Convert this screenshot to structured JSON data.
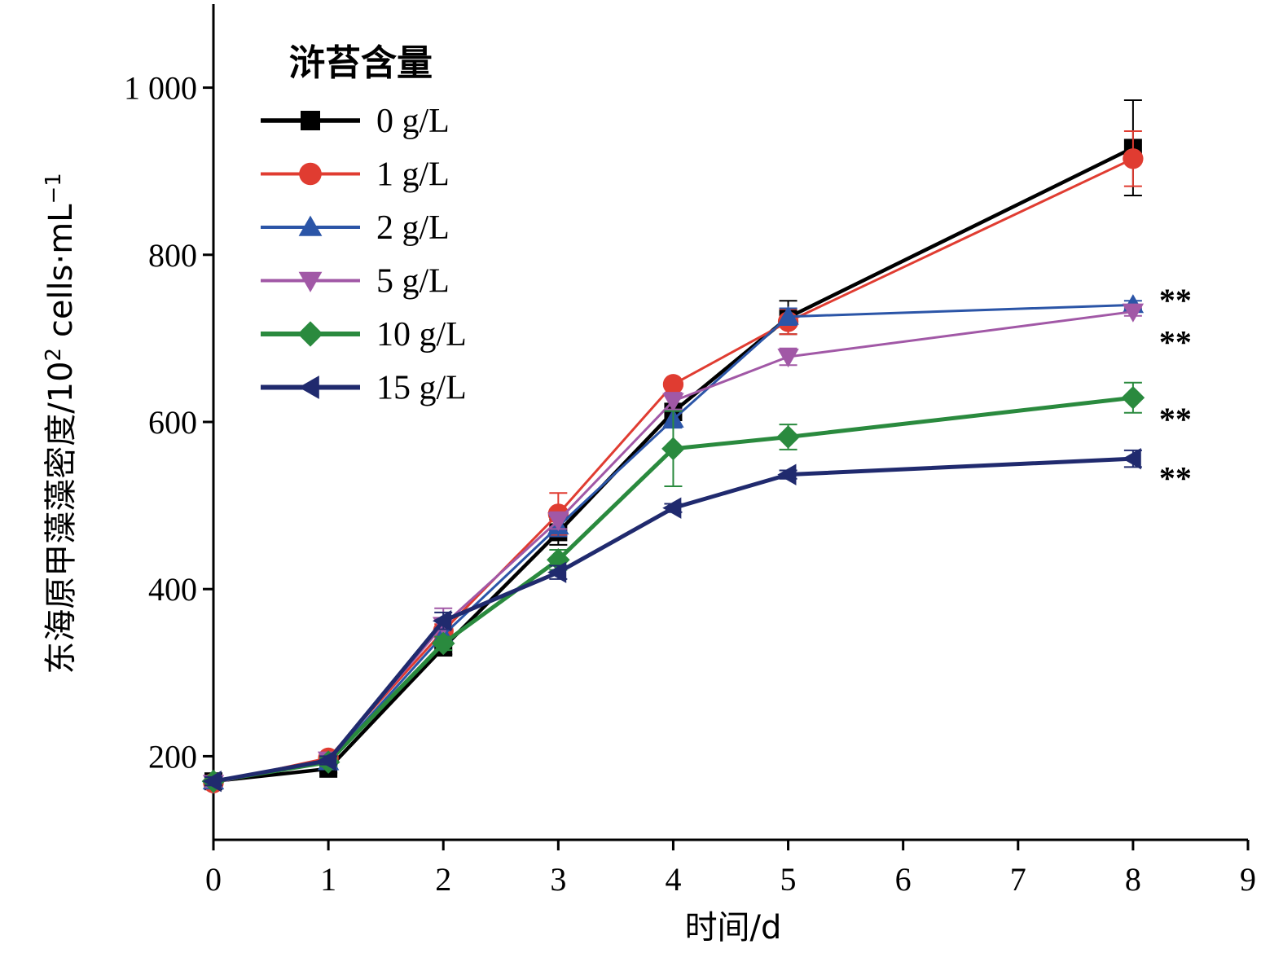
{
  "chart_data": {
    "type": "line",
    "xlabel": "时间/d",
    "ylabel": "东海原甲藻藻密度/10",
    "ylabel_sup_exp": "2",
    "ylabel_unit": " cells·mL",
    "ylabel_sup_unit": "−1",
    "xlim": [
      0,
      9
    ],
    "ylim": [
      100,
      1100
    ],
    "x_ticks": [
      0,
      1,
      2,
      3,
      4,
      5,
      6,
      7,
      8,
      9
    ],
    "x_tick_labels": [
      "0",
      "1",
      "2",
      "3",
      "4",
      "5",
      "6",
      "7",
      "8",
      "9"
    ],
    "y_ticks": [
      200,
      400,
      600,
      800,
      1000
    ],
    "y_tick_labels": [
      "200",
      "400",
      "600",
      "800",
      "1 000"
    ],
    "grid": false,
    "legend": {
      "title": "浒苔含量",
      "position": "top-left"
    },
    "series": [
      {
        "name": "0 g/L",
        "color": "#000000",
        "marker": "square",
        "x": [
          0,
          1,
          2,
          3,
          4,
          5,
          8
        ],
        "y": [
          170,
          185,
          330,
          468,
          612,
          725,
          928
        ],
        "err": [
          5,
          5,
          8,
          15,
          10,
          20,
          57
        ]
      },
      {
        "name": "1 g/L",
        "color": "#e03c31",
        "marker": "circle",
        "x": [
          0,
          1,
          2,
          3,
          4,
          5,
          8
        ],
        "y": [
          168,
          198,
          350,
          490,
          645,
          720,
          915
        ],
        "err": [
          5,
          5,
          8,
          25,
          5,
          15,
          33
        ]
      },
      {
        "name": "2 g/L",
        "color": "#2b55a7",
        "marker": "triangle-up",
        "x": [
          0,
          1,
          2,
          3,
          4,
          5,
          8
        ],
        "y": [
          170,
          193,
          345,
          475,
          603,
          726,
          740
        ],
        "err": [
          5,
          5,
          8,
          12,
          10,
          10,
          5
        ]
      },
      {
        "name": "5 g/L",
        "color": "#a158a6",
        "marker": "triangle-down",
        "x": [
          0,
          1,
          2,
          3,
          4,
          5,
          8
        ],
        "y": [
          168,
          196,
          357,
          482,
          625,
          678,
          732
        ],
        "err": [
          5,
          5,
          20,
          10,
          10,
          10,
          5
        ]
      },
      {
        "name": "10 g/L",
        "color": "#2a8a3e",
        "marker": "diamond",
        "x": [
          0,
          1,
          2,
          3,
          4,
          5,
          8
        ],
        "y": [
          170,
          193,
          335,
          435,
          568,
          582,
          629
        ],
        "err": [
          5,
          5,
          8,
          12,
          45,
          15,
          18
        ]
      },
      {
        "name": "15 g/L",
        "color": "#202a6e",
        "marker": "triangle-left",
        "x": [
          0,
          1,
          2,
          3,
          4,
          5,
          8
        ],
        "y": [
          170,
          195,
          362,
          420,
          497,
          537,
          556
        ],
        "err": [
          5,
          5,
          10,
          8,
          5,
          5,
          10
        ]
      }
    ],
    "annotations": [
      {
        "text": "**",
        "x": 8,
        "y": 750
      },
      {
        "text": "**",
        "x": 8,
        "y": 700
      },
      {
        "text": "**",
        "x": 8,
        "y": 608
      },
      {
        "text": "**",
        "x": 8,
        "y": 537
      }
    ]
  }
}
